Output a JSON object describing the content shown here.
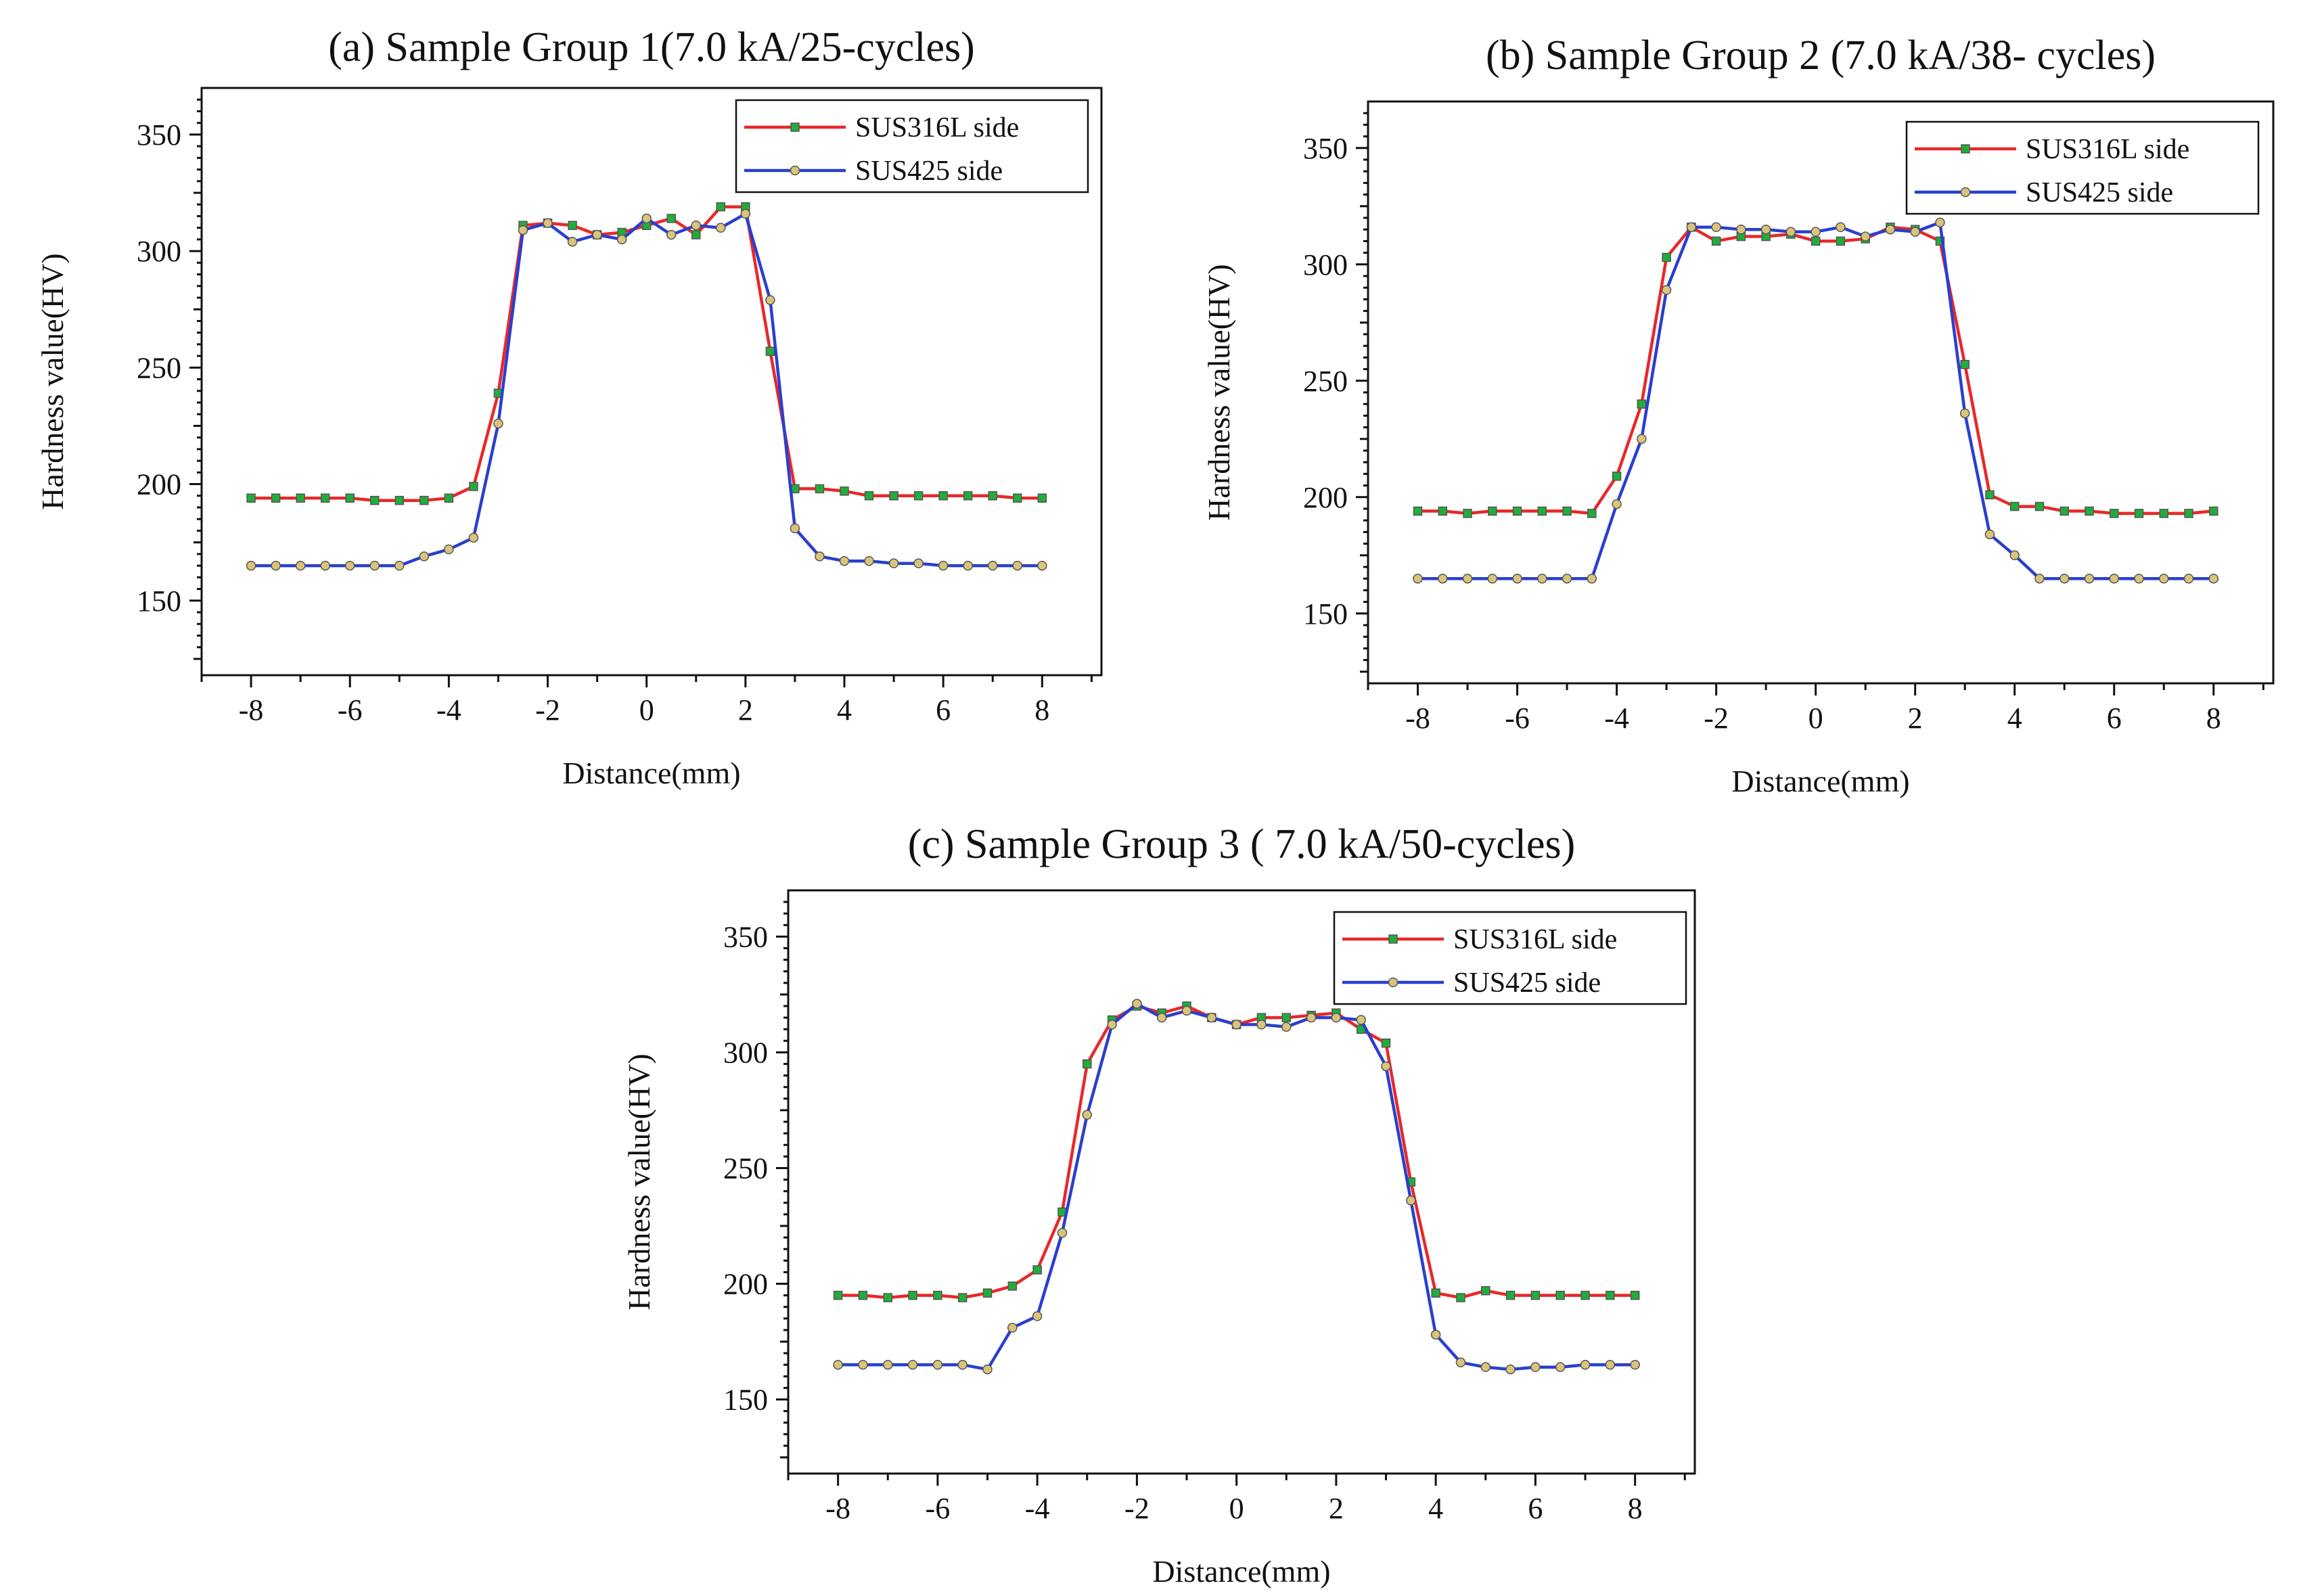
{
  "colors": {
    "series_316": "#e8282a",
    "series_425": "#2a3fcf",
    "marker_316": "#1fae3a",
    "marker_425": "#d9c47a",
    "axis": "#111111"
  },
  "chart_data": [
    {
      "type": "line",
      "title": "(a) Sample Group 1(7.0 kA/25-cycles)",
      "xlabel": "Distance(mm)",
      "ylabel": "Hardness value(HV)",
      "xlim": [
        -9,
        9.2
      ],
      "ylim": [
        118,
        370
      ],
      "xticks": [
        -8,
        -6,
        -4,
        -2,
        0,
        2,
        4,
        6,
        8
      ],
      "yticks": [
        150,
        200,
        250,
        300,
        350
      ],
      "xtick_labels": [
        "-8",
        "-6",
        "-4",
        "-2",
        "0",
        "2",
        "4",
        "6",
        "8"
      ],
      "ytick_labels": [
        "150",
        "200",
        "250",
        "300",
        "350"
      ],
      "legend_position": "top-right",
      "series": [
        {
          "name": "SUS316L side",
          "x": [
            -8,
            -7.5,
            -7,
            -6.5,
            -6,
            -5.5,
            -5,
            -4.5,
            -4,
            -3.5,
            -3,
            -2.5,
            -2,
            -1.5,
            -1,
            -0.5,
            0,
            0.5,
            1,
            1.5,
            2,
            2.5,
            3,
            3.5,
            4,
            4.5,
            5,
            5.5,
            6,
            6.5,
            7,
            7.5,
            8
          ],
          "y": [
            194,
            194,
            194,
            194,
            194,
            193,
            193,
            193,
            194,
            199,
            239,
            311,
            312,
            311,
            307,
            308,
            311,
            314,
            307,
            319,
            319,
            257,
            198,
            198,
            197,
            195,
            195,
            195,
            195,
            195,
            195,
            194,
            194
          ]
        },
        {
          "name": "SUS425 side",
          "x": [
            -8,
            -7.5,
            -7,
            -6.5,
            -6,
            -5.5,
            -5,
            -4.5,
            -4,
            -3.5,
            -3,
            -2.5,
            -2,
            -1.5,
            -1,
            -0.5,
            0,
            0.5,
            1,
            1.5,
            2,
            2.5,
            3,
            3.5,
            4,
            4.5,
            5,
            5.5,
            6,
            6.5,
            7,
            7.5,
            8
          ],
          "y": [
            165,
            165,
            165,
            165,
            165,
            165,
            165,
            169,
            172,
            177,
            226,
            309,
            312,
            304,
            307,
            305,
            314,
            307,
            311,
            310,
            316,
            279,
            181,
            169,
            167,
            167,
            166,
            166,
            165,
            165,
            165,
            165,
            165
          ]
        }
      ]
    },
    {
      "type": "line",
      "title": "(b) Sample Group 2 (7.0 kA/38- cycles)",
      "xlabel": "Distance(mm)",
      "ylabel": "Hardness value(HV)",
      "xlim": [
        -9,
        9.2
      ],
      "ylim": [
        120,
        370
      ],
      "xticks": [
        -8,
        -6,
        -4,
        -2,
        0,
        2,
        4,
        6,
        8
      ],
      "yticks": [
        150,
        200,
        250,
        300,
        350
      ],
      "xtick_labels": [
        "-8",
        "-6",
        "-4",
        "-2",
        "0",
        "2",
        "4",
        "6",
        "8"
      ],
      "ytick_labels": [
        "150",
        "200",
        "250",
        "300",
        "350"
      ],
      "legend_position": "top-right",
      "series": [
        {
          "name": "SUS316L side",
          "x": [
            -8,
            -7.5,
            -7,
            -6.5,
            -6,
            -5.5,
            -5,
            -4.5,
            -4,
            -3.5,
            -3,
            -2.5,
            -2,
            -1.5,
            -1,
            -0.5,
            0,
            0.5,
            1,
            1.5,
            2,
            2.5,
            3,
            3.5,
            4,
            4.5,
            5,
            5.5,
            6,
            6.5,
            7,
            7.5,
            8
          ],
          "y": [
            194,
            194,
            193,
            194,
            194,
            194,
            194,
            193,
            209,
            240,
            303,
            316,
            310,
            312,
            312,
            313,
            310,
            310,
            311,
            316,
            315,
            310,
            257,
            201,
            196,
            196,
            194,
            194,
            193,
            193,
            193,
            193,
            194
          ]
        },
        {
          "name": "SUS425 side",
          "x": [
            -8,
            -7.5,
            -7,
            -6.5,
            -6,
            -5.5,
            -5,
            -4.5,
            -4,
            -3.5,
            -3,
            -2.5,
            -2,
            -1.5,
            -1,
            -0.5,
            0,
            0.5,
            1,
            1.5,
            2,
            2.5,
            3,
            3.5,
            4,
            4.5,
            5,
            5.5,
            6,
            6.5,
            7,
            7.5,
            8
          ],
          "y": [
            165,
            165,
            165,
            165,
            165,
            165,
            165,
            165,
            197,
            225,
            289,
            316,
            316,
            315,
            315,
            314,
            314,
            316,
            312,
            315,
            314,
            318,
            236,
            184,
            175,
            165,
            165,
            165,
            165,
            165,
            165,
            165,
            165
          ]
        }
      ]
    },
    {
      "type": "line",
      "title": "(c) Sample Group 3 ( 7.0 kA/50-cycles)",
      "xlabel": "Distance(mm)",
      "ylabel": "Hardness value(HV)",
      "xlim": [
        -9,
        9.2
      ],
      "ylim": [
        118,
        370
      ],
      "xticks": [
        -8,
        -6,
        -4,
        -2,
        0,
        2,
        4,
        6,
        8
      ],
      "yticks": [
        150,
        200,
        250,
        300,
        350
      ],
      "xtick_labels": [
        "-8",
        "-6",
        "-4",
        "-2",
        "0",
        "2",
        "4",
        "6",
        "8"
      ],
      "ytick_labels": [
        "150",
        "200",
        "250",
        "300",
        "350"
      ],
      "legend_position": "top-right",
      "series": [
        {
          "name": "SUS316L side",
          "x": [
            -8,
            -7.5,
            -7,
            -6.5,
            -6,
            -5.5,
            -5,
            -4.5,
            -4,
            -3.5,
            -3,
            -2.5,
            -2,
            -1.5,
            -1,
            -0.5,
            0,
            0.5,
            1,
            1.5,
            2,
            2.5,
            3,
            3.5,
            4,
            4.5,
            5,
            5.5,
            6,
            6.5,
            7,
            7.5,
            8
          ],
          "y": [
            195,
            195,
            194,
            195,
            195,
            194,
            196,
            199,
            206,
            231,
            295,
            314,
            320,
            317,
            320,
            315,
            312,
            315,
            315,
            316,
            317,
            310,
            304,
            244,
            196,
            194,
            197,
            195,
            195,
            195,
            195,
            195,
            195
          ]
        },
        {
          "name": "SUS425 side",
          "x": [
            -8,
            -7.5,
            -7,
            -6.5,
            -6,
            -5.5,
            -5,
            -4.5,
            -4,
            -3.5,
            -3,
            -2.5,
            -2,
            -1.5,
            -1,
            -0.5,
            0,
            0.5,
            1,
            1.5,
            2,
            2.5,
            3,
            3.5,
            4,
            4.5,
            5,
            5.5,
            6,
            6.5,
            7,
            7.5,
            8
          ],
          "y": [
            165,
            165,
            165,
            165,
            165,
            165,
            163,
            181,
            186,
            222,
            273,
            312,
            321,
            315,
            318,
            315,
            312,
            312,
            311,
            315,
            315,
            314,
            294,
            236,
            178,
            166,
            164,
            163,
            164,
            164,
            165,
            165,
            165
          ]
        }
      ]
    }
  ]
}
